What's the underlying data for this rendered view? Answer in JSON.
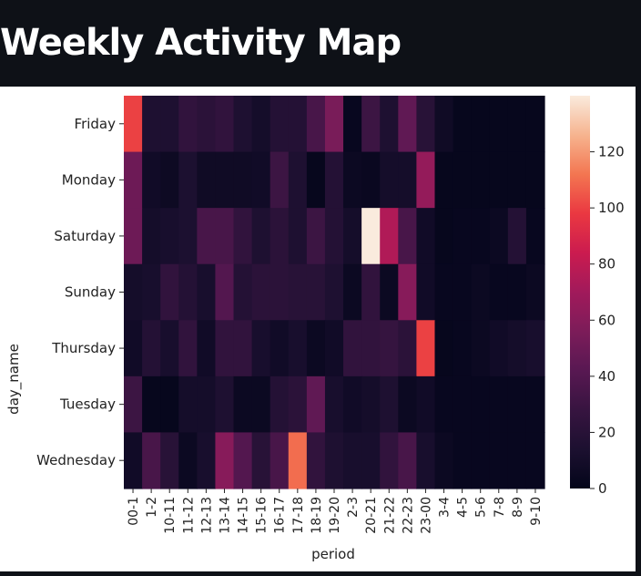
{
  "page": {
    "title": "Weekly Activity Map"
  },
  "chart_data": {
    "type": "heatmap",
    "xlabel": "period",
    "ylabel": "day_name",
    "x_categories": [
      "00-1",
      "1-2",
      "10-11",
      "11-12",
      "12-13",
      "13-14",
      "14-15",
      "15-16",
      "16-17",
      "17-18",
      "18-19",
      "19-20",
      "2-3",
      "20-21",
      "21-22",
      "22-23",
      "23-00",
      "3-4",
      "4-5",
      "5-6",
      "7-8",
      "8-9",
      "9-10"
    ],
    "y_categories": [
      "Friday",
      "Monday",
      "Saturday",
      "Sunday",
      "Thursday",
      "Tuesday",
      "Wednesday"
    ],
    "values": [
      [
        100,
        15,
        15,
        25,
        22,
        25,
        15,
        10,
        18,
        18,
        35,
        55,
        3,
        30,
        15,
        45,
        20,
        7,
        2,
        2,
        2,
        2,
        2
      ],
      [
        50,
        8,
        6,
        14,
        7,
        7,
        7,
        8,
        30,
        15,
        2,
        18,
        5,
        4,
        10,
        10,
        65,
        2,
        2,
        2,
        2,
        2,
        2
      ],
      [
        50,
        10,
        12,
        14,
        35,
        35,
        25,
        15,
        22,
        15,
        30,
        18,
        10,
        140,
        75,
        35,
        8,
        2,
        3,
        3,
        5,
        18,
        3
      ],
      [
        10,
        12,
        25,
        18,
        12,
        40,
        18,
        22,
        22,
        20,
        20,
        15,
        5,
        25,
        5,
        60,
        8,
        3,
        3,
        5,
        3,
        3,
        5
      ],
      [
        8,
        18,
        12,
        25,
        8,
        25,
        25,
        12,
        8,
        12,
        5,
        8,
        25,
        25,
        27,
        22,
        100,
        2,
        3,
        5,
        8,
        10,
        12
      ],
      [
        30,
        2,
        2,
        10,
        10,
        15,
        5,
        5,
        18,
        22,
        45,
        12,
        8,
        10,
        15,
        5,
        8,
        3,
        3,
        3,
        3,
        3,
        3
      ],
      [
        8,
        35,
        20,
        5,
        12,
        60,
        40,
        20,
        35,
        110,
        25,
        15,
        12,
        12,
        25,
        35,
        12,
        5,
        3,
        3,
        3,
        3,
        3
      ]
    ],
    "colorbar": {
      "min": 0,
      "max": 140,
      "ticks": [
        0,
        20,
        40,
        60,
        80,
        100,
        120
      ]
    },
    "colormap": "rocket"
  }
}
